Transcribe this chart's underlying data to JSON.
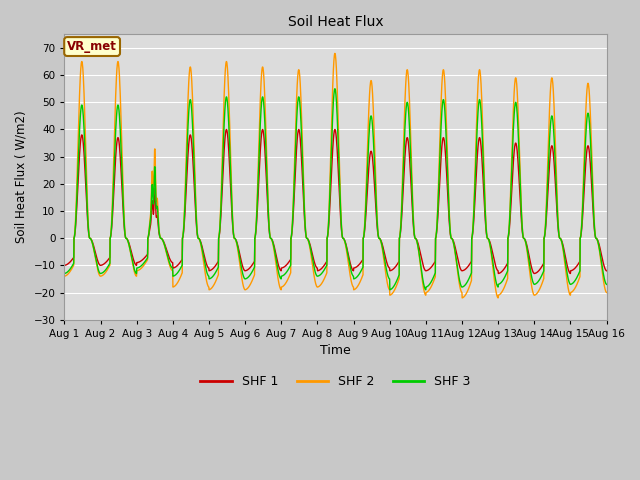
{
  "title": "Soil Heat Flux",
  "ylabel": "Soil Heat Flux ( W/m2)",
  "xlabel": "Time",
  "ylim": [
    -30,
    75
  ],
  "yticks": [
    -30,
    -20,
    -10,
    0,
    10,
    20,
    30,
    40,
    50,
    60,
    70
  ],
  "colors": {
    "SHF 1": "#cc0000",
    "SHF 2": "#ff9900",
    "SHF 3": "#00cc00"
  },
  "line_width": 1.0,
  "fig_bg_color": "#c8c8c8",
  "plot_bg_color": "#dcdcdc",
  "annotation_text": "VR_met",
  "annotation_bg": "#ffffcc",
  "annotation_border": "#996600",
  "annotation_text_color": "#880000",
  "days": 15,
  "start_day": 1,
  "points_per_day": 144
}
